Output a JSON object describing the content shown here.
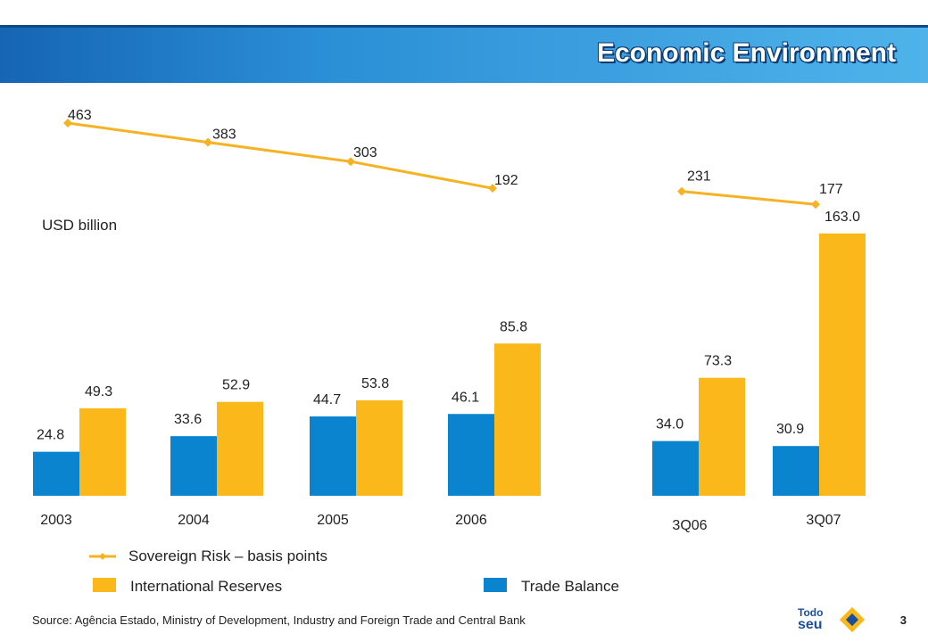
{
  "title": "Economic Environment",
  "unit_label": "USD billion",
  "legend": {
    "sovereign": "Sovereign Risk – basis points",
    "reserves": "International Reserves",
    "trade": "Trade Balance"
  },
  "source": "Source: Agência Estado, Ministry of Development, Industry and Foreign Trade and Central Bank",
  "page_number": "3",
  "logo": {
    "line1": "Todo",
    "line2": "seu"
  },
  "colors": {
    "trade": "#0a84cf",
    "reserves": "#fbb81a",
    "line": "#f5b324",
    "title_bar": "#2b8fd6"
  },
  "chart_data": {
    "type": "bar",
    "categories": [
      "2003",
      "2004",
      "2005",
      "2006",
      "3Q06",
      "3Q07"
    ],
    "series": [
      {
        "name": "Trade Balance",
        "values": [
          24.8,
          33.6,
          44.7,
          46.1,
          34.0,
          30.9
        ]
      },
      {
        "name": "International Reserves",
        "values": [
          49.3,
          52.9,
          53.8,
          85.8,
          73.3,
          163.0
        ]
      }
    ],
    "line_series": {
      "name": "Sovereign Risk – basis points",
      "groups": [
        {
          "categories": [
            "2003",
            "2004",
            "2005",
            "2006"
          ],
          "values": [
            463,
            383,
            303,
            192
          ]
        },
        {
          "categories": [
            "3Q06",
            "3Q07"
          ],
          "values": [
            231,
            177
          ]
        }
      ]
    },
    "ylabel": "USD billion",
    "grid": false,
    "legend_position": "bottom"
  }
}
